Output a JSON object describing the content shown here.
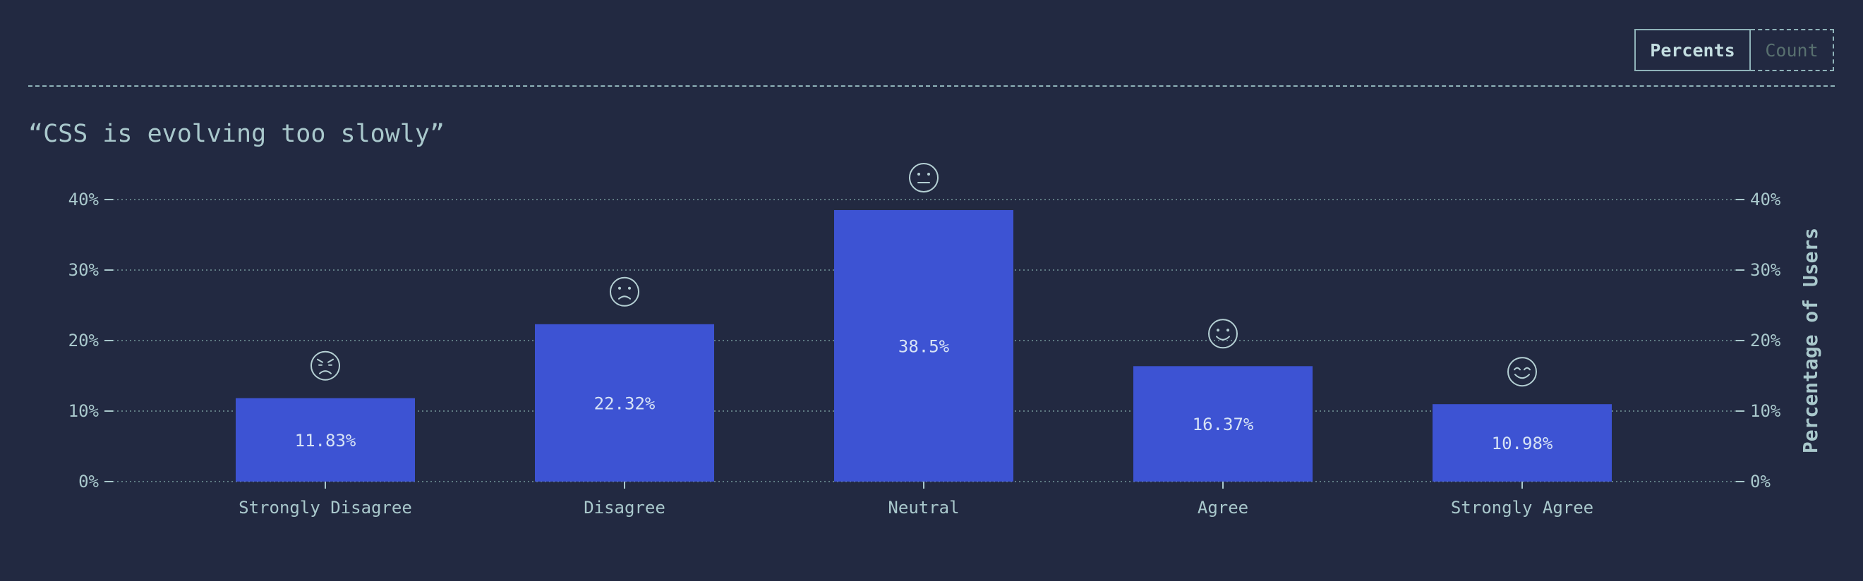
{
  "toggle": {
    "percents_label": "Percents",
    "count_label": "Count",
    "active": "Percents"
  },
  "colors": {
    "background": "#222941",
    "bar": "#3d53d3",
    "text": "#a9c8cc"
  },
  "chart_data": {
    "type": "bar",
    "title": "“CSS is evolving too slowly”",
    "categories": [
      "Strongly Disagree",
      "Disagree",
      "Neutral",
      "Agree",
      "Strongly Agree"
    ],
    "values": [
      11.83,
      22.32,
      38.5,
      16.37,
      10.98
    ],
    "value_labels": [
      "11.83%",
      "22.32%",
      "38.5%",
      "16.37%",
      "10.98%"
    ],
    "icons": [
      "angry-face-icon",
      "frowning-face-icon",
      "neutral-face-icon",
      "smiling-face-icon",
      "happy-face-icon"
    ],
    "xlabel": "",
    "ylabel": "Percentage of Users",
    "ylim": [
      0,
      40
    ],
    "yticks": [
      0,
      10,
      20,
      30,
      40
    ],
    "ytick_labels": [
      "0%",
      "10%",
      "20%",
      "30%",
      "40%"
    ],
    "grid": true,
    "legend": "none"
  }
}
